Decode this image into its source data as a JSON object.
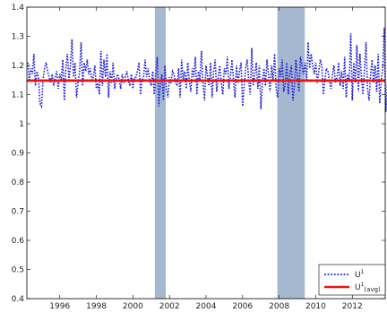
{
  "chart_data": {
    "type": "line",
    "title": "",
    "xlabel": "",
    "ylabel": "",
    "xlim": [
      1994.2,
      2013.8
    ],
    "ylim": [
      0.4,
      1.4
    ],
    "x_ticks": [
      "1996",
      "1998",
      "2000",
      "2002",
      "2004",
      "2006",
      "2008",
      "2010",
      "2012"
    ],
    "y_ticks": [
      "0.4",
      "0.5",
      "0.6",
      "0.7",
      "0.8",
      "0.9",
      "1",
      "1.1",
      "1.2",
      "1.3",
      "1.4"
    ],
    "grid": false,
    "legend_position": "bottom-right",
    "shaded_periods": [
      {
        "start": 2001.2,
        "end": 2001.8
      },
      {
        "start": 2007.9,
        "end": 2009.4
      }
    ],
    "series": [
      {
        "name": "U",
        "name_sup": "1",
        "style": "dotted",
        "color": "#1f1fd4",
        "x_start": 1994.25,
        "x_step": 0.08333,
        "values": [
          1.21,
          1.15,
          1.19,
          1.17,
          1.24,
          1.13,
          1.18,
          1.16,
          1.07,
          1.06,
          1.15,
          1.19,
          1.21,
          1.18,
          1.16,
          1.14,
          1.17,
          1.13,
          1.16,
          1.18,
          1.12,
          1.17,
          1.15,
          1.22,
          1.08,
          1.19,
          1.24,
          1.15,
          1.2,
          1.29,
          1.16,
          1.21,
          1.09,
          1.14,
          1.18,
          1.28,
          1.13,
          1.21,
          1.18,
          1.22,
          1.17,
          1.19,
          1.15,
          1.16,
          1.2,
          1.12,
          1.14,
          1.1,
          1.25,
          1.13,
          1.22,
          1.16,
          1.24,
          1.09,
          1.18,
          1.14,
          1.21,
          1.12,
          1.16,
          1.17,
          1.15,
          1.12,
          1.17,
          1.14,
          1.16,
          1.18,
          1.15,
          1.13,
          1.17,
          1.12,
          1.16,
          1.16,
          1.18,
          1.21,
          1.1,
          1.15,
          1.16,
          1.22,
          1.16,
          1.19,
          1.15,
          1.13,
          1.18,
          1.1,
          1.17,
          1.23,
          1.06,
          1.14,
          1.17,
          1.08,
          1.2,
          1.12,
          1.09,
          1.16,
          1.14,
          1.18,
          1.17,
          1.14,
          1.13,
          1.19,
          1.09,
          1.22,
          1.15,
          1.18,
          1.12,
          1.21,
          1.15,
          1.11,
          1.19,
          1.16,
          1.23,
          1.1,
          1.18,
          1.15,
          1.25,
          1.14,
          1.08,
          1.2,
          1.16,
          1.13,
          1.21,
          1.09,
          1.18,
          1.22,
          1.11,
          1.16,
          1.2,
          1.14,
          1.1,
          1.19,
          1.17,
          1.23,
          1.12,
          1.16,
          1.22,
          1.15,
          1.09,
          1.2,
          1.14,
          1.18,
          1.21,
          1.06,
          1.13,
          1.19,
          1.22,
          1.15,
          1.1,
          1.26,
          1.13,
          1.17,
          1.21,
          1.12,
          1.2,
          1.05,
          1.14,
          1.19,
          1.13,
          1.22,
          1.17,
          1.11,
          1.2,
          1.15,
          1.24,
          1.12,
          1.09,
          1.19,
          1.16,
          1.22,
          1.11,
          1.14,
          1.21,
          1.1,
          1.17,
          1.2,
          1.08,
          1.13,
          1.22,
          1.16,
          1.11,
          1.23,
          1.2,
          1.17,
          1.21,
          1.15,
          1.28,
          1.19,
          1.24,
          1.2,
          1.17,
          1.21,
          1.14,
          1.18,
          1.22,
          1.2,
          1.1,
          1.15,
          1.19,
          1.18,
          1.15,
          1.12,
          1.17,
          1.2,
          1.14,
          1.16,
          1.21,
          1.13,
          1.18,
          1.12,
          1.23,
          1.09,
          1.17,
          1.15,
          1.31,
          1.08,
          1.21,
          1.14,
          1.27,
          1.11,
          1.24,
          1.16,
          1.1,
          1.19,
          1.28,
          1.12,
          1.08,
          1.17,
          1.22,
          1.14,
          1.2,
          1.11,
          1.24,
          1.07,
          1.15,
          1.19,
          1.33,
          1.04,
          1.13,
          1.22,
          1.16,
          1.09,
          1.24,
          1.18,
          1.14,
          1.2,
          1.12,
          1.22,
          1.32
        ]
      },
      {
        "name": "U",
        "name_sup": "1",
        "name_sub": "(avg)",
        "style": "solid",
        "color": "#ee1111",
        "x": [
          1994.2,
          2013.8
        ],
        "values": [
          1.148,
          1.148
        ]
      }
    ]
  }
}
